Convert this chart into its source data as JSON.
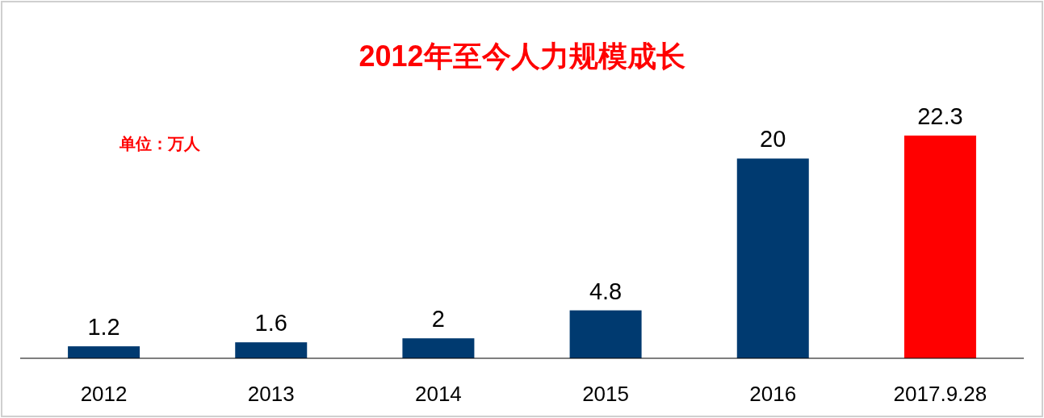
{
  "chart_data": {
    "type": "bar",
    "title": "2012年至今人力规模成长",
    "annotations": [
      "单位：万人"
    ],
    "categories": [
      "2012",
      "2013",
      "2014",
      "2015",
      "2016",
      "2017.9.28"
    ],
    "values": [
      1.2,
      1.6,
      2,
      4.8,
      20,
      22.3
    ],
    "colors": [
      "#003a70",
      "#003a70",
      "#003a70",
      "#003a70",
      "#003a70",
      "#ff0000"
    ],
    "data_labels": true
  }
}
